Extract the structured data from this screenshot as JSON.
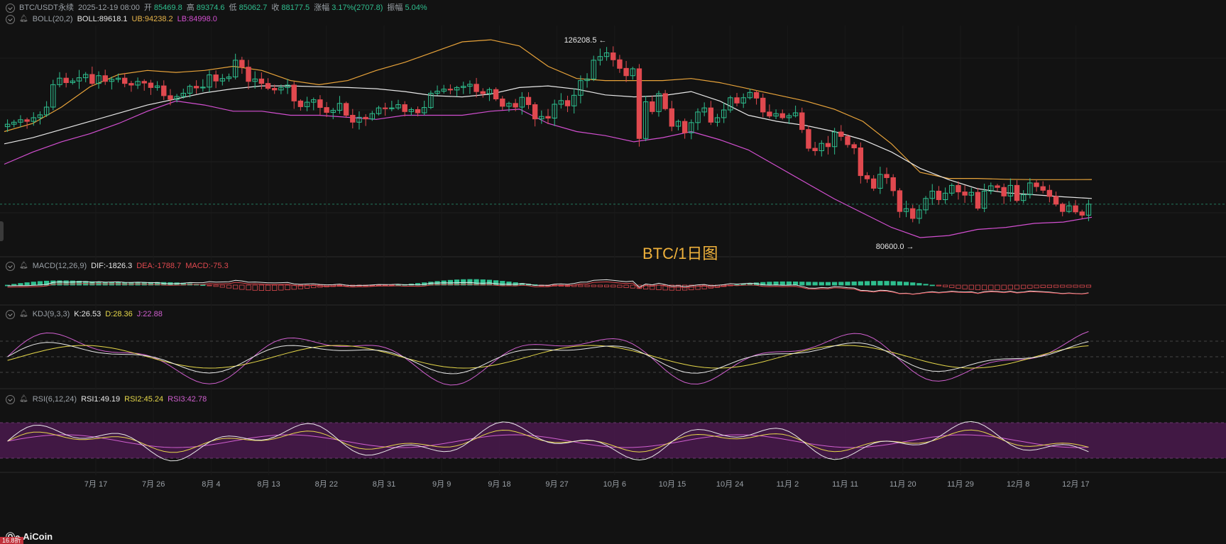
{
  "header": {
    "symbol": "BTC/USDT永续",
    "datetime": "2025-12-19 08:00",
    "open_label": "开",
    "open": "85469.8",
    "high_label": "高",
    "high": "89374.6",
    "low_label": "低",
    "low": "85062.7",
    "close_label": "收",
    "close": "88177.5",
    "change_label": "涨幅",
    "change": "3.17%(2707.8)",
    "amp_label": "振幅",
    "amp": "5.04%"
  },
  "boll": {
    "name": "BOLL(20,2)",
    "boll": "BOLL:89618.1",
    "ub": "UB:94238.2",
    "lb": "LB:84998.0"
  },
  "macd": {
    "name": "MACD(12,26,9)",
    "dif": "DIF:-1826.3",
    "dea": "DEA:-1788.7",
    "macd": "MACD:-75.3"
  },
  "kdj": {
    "name": "KDJ(9,3,3)",
    "k": "K:26.53",
    "d": "D:28.36",
    "j": "J:22.88"
  },
  "rsi": {
    "name": "RSI(6,12,24)",
    "rsi1": "RSI1:49.19",
    "rsi2": "RSI2:45.24",
    "rsi3": "RSI3:42.78"
  },
  "annotations": {
    "title": "BTC/1日图",
    "high_mark": "126208.5",
    "low_mark": "80600.0"
  },
  "logo": "AiCoin",
  "badge": "16.8折",
  "colors": {
    "up": "#2fbf8f",
    "down": "#e0494f",
    "boll_mid": "#e8e8e8",
    "boll_ub": "#e8a33a",
    "boll_lb": "#d24fd0",
    "bg": "#121212"
  },
  "chart_data": {
    "type": "candlestick",
    "x_tick_labels": [
      "7月 17",
      "7月 26",
      "8月 4",
      "8月 13",
      "8月 22",
      "8月 31",
      "9月 9",
      "9月 18",
      "9月 27",
      "10月 6",
      "10月 15",
      "10月 24",
      "11月 2",
      "11月 11",
      "11月 20",
      "11月 29",
      "12月 8",
      "12月 17"
    ],
    "ylim": [
      76000,
      132000
    ],
    "close": [
      107800,
      108300,
      108900,
      108500,
      109400,
      110100,
      112000,
      117500,
      119100,
      118000,
      118400,
      119200,
      120000,
      117800,
      119700,
      118300,
      118800,
      119100,
      117800,
      117400,
      118300,
      117900,
      116800,
      117200,
      114800,
      113900,
      114600,
      115400,
      117100,
      116700,
      116900,
      119900,
      118400,
      119000,
      119400,
      123500,
      121800,
      118300,
      118900,
      117800,
      116600,
      116200,
      116800,
      117400,
      113500,
      112100,
      113200,
      113800,
      111900,
      110700,
      111200,
      112900,
      110000,
      108300,
      109500,
      109100,
      110400,
      111800,
      111600,
      111800,
      112600,
      110900,
      111400,
      110600,
      111900,
      115400,
      115900,
      116400,
      116200,
      116800,
      117100,
      117600,
      115800,
      115300,
      116300,
      114000,
      112200,
      112900,
      112000,
      114400,
      112600,
      109100,
      109700,
      109300,
      112700,
      113600,
      112300,
      114900,
      118500,
      118900,
      123500,
      124400,
      125300,
      123600,
      121500,
      119700,
      121400,
      104300,
      113300,
      110900,
      115300,
      111600,
      107300,
      108500,
      105700,
      108200,
      110800,
      111800,
      108300,
      109400,
      111300,
      114300,
      113000,
      114300,
      115600,
      114200,
      110800,
      109800,
      110400,
      109400,
      109900,
      110600,
      106500,
      101900,
      101300,
      103100,
      102300,
      105900,
      104800,
      102800,
      102000,
      95200,
      94400,
      92100,
      95500,
      94700,
      91500,
      86400,
      87100,
      84700,
      86800,
      89600,
      91400,
      89300,
      90900,
      92800,
      91200,
      90400,
      91100,
      87200,
      91400,
      92700,
      92300,
      90200,
      92800,
      89100,
      90500,
      93400,
      92500,
      91600,
      90100,
      88200,
      86400,
      87800,
      86300,
      85500,
      88200
    ],
    "boll_mid_approx": [
      103000,
      104500,
      106500,
      108500,
      110500,
      112500,
      114000,
      115500,
      116500,
      117200,
      117200,
      117000,
      116800,
      116500,
      115800,
      114800,
      114500,
      115200,
      116800,
      117200,
      116400,
      115000,
      114500,
      114800,
      115800,
      113500,
      110000,
      108500,
      107500,
      106000,
      104000,
      101000,
      97000,
      94200,
      92000,
      91000,
      90500,
      90000,
      89600
    ],
    "boll_ub_approx": [
      106000,
      108000,
      112000,
      117000,
      120000,
      121000,
      120500,
      121000,
      122000,
      121000,
      118500,
      117500,
      118500,
      121000,
      123000,
      125500,
      128000,
      128500,
      127000,
      122000,
      119000,
      118500,
      118500,
      118500,
      119000,
      118000,
      116500,
      115000,
      113500,
      111500,
      108500,
      103000,
      96000,
      94500,
      94500,
      94300,
      94200,
      94200,
      94238
    ],
    "boll_lb_approx": [
      98000,
      101000,
      103500,
      105500,
      108000,
      111000,
      113500,
      112500,
      111000,
      111000,
      110000,
      110000,
      109500,
      109000,
      110000,
      110000,
      110000,
      111000,
      111500,
      108000,
      106000,
      105000,
      103500,
      104500,
      106000,
      104000,
      101500,
      97500,
      93500,
      89500,
      86000,
      82500,
      80000,
      80500,
      82000,
      82500,
      83500,
      83800,
      84998
    ]
  }
}
